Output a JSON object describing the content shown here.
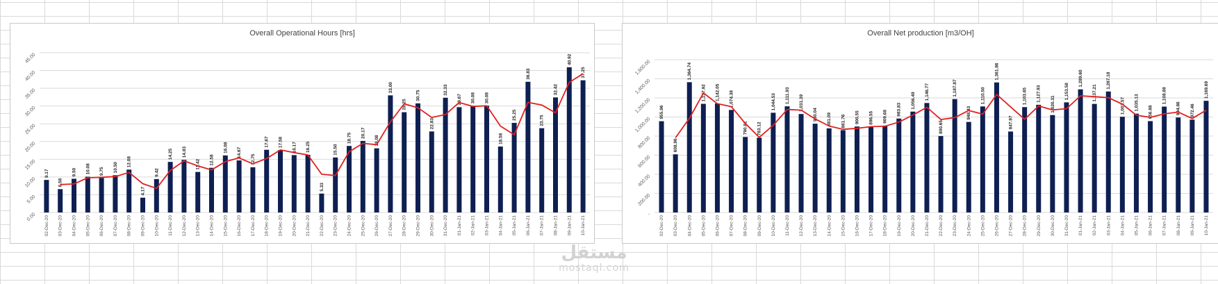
{
  "colors": {
    "bar": "#0e1f52",
    "line": "#e02020",
    "grid": "#d9d9d9",
    "text": "#595959"
  },
  "watermark": {
    "arabic": "مستقل",
    "latin": "mostaql.com"
  },
  "chart_data": [
    {
      "type": "bar",
      "title": "Overall Operational Hours [hrs]",
      "xlabel": "",
      "ylabel": "",
      "ylim": [
        0,
        45
      ],
      "yticks": [
        "0.00",
        "5.00",
        "10.00",
        "15.00",
        "20.00",
        "25.00",
        "30.00",
        "35.00",
        "40.00",
        "45.00"
      ],
      "grid": true,
      "trendline": "moving average (red line)",
      "categories": [
        "02-Dec-20",
        "03-Dec-20",
        "04-Dec-20",
        "05-Dec-20",
        "06-Dec-20",
        "07-Dec-20",
        "08-Dec-20",
        "09-Dec-20",
        "10-Dec-20",
        "11-Dec-20",
        "12-Dec-20",
        "13-Dec-20",
        "14-Dec-20",
        "15-Dec-20",
        "16-Dec-20",
        "17-Dec-20",
        "18-Dec-20",
        "19-Dec-20",
        "20-Dec-20",
        "21-Dec-20",
        "22-Dec-20",
        "23-Dec-20",
        "24-Dec-20",
        "25-Dec-20",
        "26-Dec-20",
        "27-Dec-20",
        "28-Dec-20",
        "29-Dec-20",
        "30-Dec-20",
        "31-Dec-20",
        "01-Jan-21",
        "02-Jan-21",
        "03-Jan-21",
        "04-Jan-21",
        "05-Jan-21",
        "06-Jan-21",
        "07-Jan-21",
        "08-Jan-21",
        "09-Jan-21",
        "10-Jan-21"
      ],
      "values": [
        9.17,
        6.58,
        9.5,
        10.08,
        9.75,
        10.5,
        12.08,
        4.17,
        9.42,
        14.25,
        14.83,
        11.42,
        12.58,
        16.08,
        14.67,
        12.75,
        17.67,
        17.58,
        16.17,
        16.25,
        5.33,
        15.5,
        18.75,
        20.17,
        18.08,
        33.0,
        28.25,
        30.75,
        22.83,
        32.33,
        29.67,
        30.08,
        30.08,
        18.58,
        25.25,
        36.83,
        23.75,
        32.42,
        40.92,
        37.25
      ],
      "labels": [
        "9.17",
        "6.58",
        "9.50",
        "10.08",
        "9.75",
        "10.50",
        "12.08",
        "4.17",
        "9.42",
        "14.25",
        "14.83",
        "11.42",
        "12.58",
        "16.08",
        "14.67",
        "12.75",
        "17.67",
        "17.58",
        "16.17",
        "16.25",
        "5.33",
        "15.50",
        "18.75",
        "20.17",
        "18.08",
        "33.00",
        "28.25",
        "30.75",
        "22.83",
        "32.33",
        "29.67",
        "30.08",
        "30.08",
        "18.58",
        "25.25",
        "36.83",
        "23.75",
        "32.42",
        "40.92",
        "37.25"
      ]
    },
    {
      "type": "bar",
      "title": "Overall Net production [m3/OH]",
      "xlabel": "",
      "ylabel": "",
      "ylim": [
        0,
        1600
      ],
      "yticks": [
        "-",
        "200.00",
        "400.00",
        "600.00",
        "800.00",
        "1,000.00",
        "1,200.00",
        "1,400.00",
        "1,600.00"
      ],
      "grid": true,
      "trendline": "moving average (red line)",
      "categories": [
        "02-Dec-20",
        "03-Dec-20",
        "04-Dec-20",
        "05-Dec-20",
        "06-Dec-20",
        "07-Dec-20",
        "08-Dec-20",
        "09-Dec-20",
        "10-Dec-20",
        "11-Dec-20",
        "12-Dec-20",
        "13-Dec-20",
        "14-Dec-20",
        "15-Dec-20",
        "16-Dec-20",
        "17-Dec-20",
        "18-Dec-20",
        "19-Dec-20",
        "20-Dec-20",
        "21-Dec-20",
        "22-Dec-20",
        "23-Dec-20",
        "24-Dec-20",
        "25-Dec-20",
        "26-Dec-20",
        "27-Dec-20",
        "28-Dec-20",
        "29-Dec-20",
        "30-Dec-20",
        "31-Dec-20",
        "01-Jan-21",
        "02-Jan-21",
        "03-Jan-21",
        "04-Jan-21",
        "05-Jan-21",
        "06-Jan-21",
        "07-Jan-21",
        "08-Jan-21",
        "09-Jan-21",
        "10-Jan-21"
      ],
      "values": [
        955.96,
        608.96,
        1364.74,
        1137.92,
        1142.05,
        1074.38,
        790.81,
        783.12,
        1044.53,
        1111.93,
        1031.39,
        930.04,
        881.09,
        861.76,
        900.55,
        896.55,
        909.68,
        983.83,
        1056.49,
        1146.77,
        800.65,
        1187.87,
        948.43,
        1110.5,
        1361.86,
        847.97,
        1103.65,
        1127.93,
        1020.31,
        1153.58,
        1289.6,
        1137.21,
        1267.18,
        1002.57,
        1035.13,
        956.88,
        1108.88,
        994.86,
        972.46,
        1169.69
      ],
      "labels": [
        "955.96",
        "608.96",
        "1,364.74",
        "1,137.92",
        "1,142.05",
        "1,074.38",
        "790.81",
        "783.12",
        "1,044.53",
        "1,111.93",
        "1,031.39",
        "930.04",
        "881.09",
        "861.76",
        "900.55",
        "896.55",
        "909.68",
        "983.83",
        "1,056.49",
        "1,146.77",
        "800.65",
        "1,187.87",
        "948.43",
        "1,110.50",
        "1,361.86",
        "847.97",
        "1,103.65",
        "1,127.93",
        "1,020.31",
        "1,153.58",
        "1,289.60",
        "1,137.21",
        "1,267.18",
        "1,002.57",
        "1,035.13",
        "956.88",
        "1,108.88",
        "994.86",
        "972.46",
        "1,169.69"
      ]
    }
  ]
}
